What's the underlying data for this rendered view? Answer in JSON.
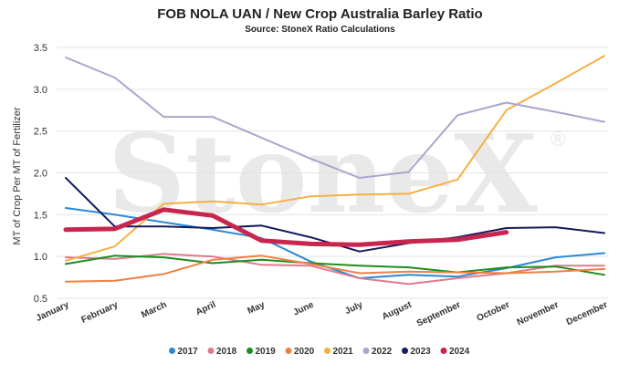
{
  "watermark": {
    "text": "StoneX",
    "mark": "®"
  },
  "chart_data": {
    "type": "line",
    "title": "FOB NOLA UAN / New Crop Australia Barley Ratio",
    "subtitle": "Source: StoneX Ratio Calculations",
    "ylabel": "MT of Crop Per MT of Fertilizer",
    "xlabel": "",
    "ylim": [
      0.5,
      3.5
    ],
    "yticks": [
      "0.5",
      "1.0",
      "1.5",
      "2.0",
      "2.5",
      "3.0",
      "3.5"
    ],
    "grid": true,
    "legend_position": "bottom",
    "categories": [
      "January",
      "February",
      "March",
      "April",
      "May",
      "June",
      "July",
      "August",
      "September",
      "October",
      "November",
      "December"
    ],
    "series": [
      {
        "name": "2017",
        "color": "#2b88d8",
        "width": 2,
        "values": [
          1.58,
          1.5,
          1.41,
          1.32,
          1.22,
          0.94,
          0.74,
          0.78,
          0.76,
          0.86,
          0.99,
          1.04
        ]
      },
      {
        "name": "2018",
        "color": "#e07a8c",
        "width": 2,
        "values": [
          0.99,
          0.97,
          1.03,
          1.0,
          0.9,
          0.89,
          0.74,
          0.67,
          0.74,
          0.8,
          0.89,
          0.89
        ]
      },
      {
        "name": "2019",
        "color": "#1e8c1e",
        "width": 2,
        "values": [
          0.91,
          1.01,
          0.99,
          0.92,
          0.96,
          0.92,
          0.89,
          0.87,
          0.81,
          0.87,
          0.88,
          0.78
        ]
      },
      {
        "name": "2020",
        "color": "#f08040",
        "width": 2,
        "values": [
          0.7,
          0.71,
          0.79,
          0.96,
          1.01,
          0.91,
          0.8,
          0.82,
          0.81,
          0.8,
          0.82,
          0.85
        ]
      },
      {
        "name": "2021",
        "color": "#f5b041",
        "width": 2,
        "values": [
          0.95,
          1.12,
          1.63,
          1.66,
          1.62,
          1.72,
          1.74,
          1.75,
          1.92,
          2.75,
          3.07,
          3.4
        ]
      },
      {
        "name": "2022",
        "color": "#a9a6cc",
        "width": 2,
        "values": [
          3.38,
          3.14,
          2.67,
          2.67,
          2.42,
          2.17,
          1.94,
          2.01,
          2.69,
          2.84,
          2.73,
          2.61
        ]
      },
      {
        "name": "2023",
        "color": "#141a5c",
        "width": 2,
        "values": [
          1.94,
          1.36,
          1.36,
          1.34,
          1.37,
          1.23,
          1.06,
          1.16,
          1.23,
          1.34,
          1.35,
          1.28
        ]
      },
      {
        "name": "2024",
        "color": "#c8264e",
        "width": 5,
        "values": [
          1.32,
          1.33,
          1.56,
          1.49,
          1.19,
          1.15,
          1.14,
          1.18,
          1.2,
          1.29,
          null,
          null
        ]
      }
    ]
  }
}
